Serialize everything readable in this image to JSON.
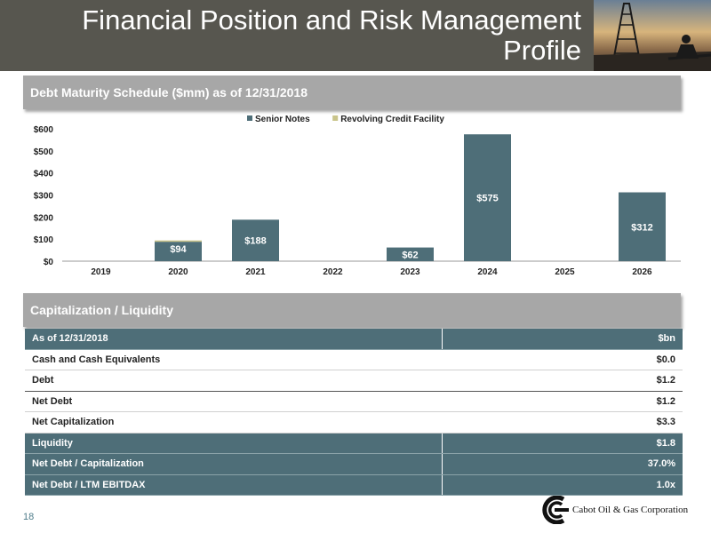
{
  "title": "Financial Position and Risk Management Profile",
  "title_line1": "Financial Position and Risk Management",
  "title_line2": "Profile",
  "debt_section": {
    "header": "Debt Maturity Schedule ($mm) as of 12/31/2018"
  },
  "chart_data": {
    "type": "bar",
    "stacked": true,
    "title": "Debt Maturity Schedule ($mm) as of 12/31/2018",
    "categories": [
      "2019",
      "2020",
      "2021",
      "2022",
      "2023",
      "2024",
      "2025",
      "2026"
    ],
    "series": [
      {
        "name": "Senior Notes",
        "color": "#4e6e78",
        "values": [
          0,
          88,
          188,
          0,
          62,
          575,
          0,
          312
        ]
      },
      {
        "name": "Revolving Credit Facility",
        "color": "#c9c48a",
        "values": [
          0,
          6,
          0,
          0,
          0,
          0,
          0,
          0
        ]
      }
    ],
    "data_labels": [
      "",
      "$94",
      "$188",
      "",
      "$62",
      "$575",
      "",
      "$312"
    ],
    "y_ticks": [
      "$0",
      "$100",
      "$200",
      "$300",
      "$400",
      "$500",
      "$600"
    ],
    "ylim": [
      0,
      600
    ],
    "legend_position": "top-center",
    "grid": false
  },
  "cap_section": {
    "header": "Capitalization / Liquidity",
    "header_row": {
      "label": "As of 12/31/2018",
      "unit": "$bn"
    },
    "rows": [
      {
        "label": "Cash and Cash Equivalents",
        "value": "$0.0"
      },
      {
        "label": "Debt",
        "value": "$1.2"
      },
      {
        "label": "Net Debt",
        "value": "$1.2"
      },
      {
        "label": "Net Capitalization",
        "value": "$3.3"
      },
      {
        "label": "Liquidity",
        "value": "$1.8"
      },
      {
        "label": "Net Debt / Capitalization",
        "value": "37.0%"
      },
      {
        "label": "Net Debt / LTM EBITDAX",
        "value": "1.0x"
      }
    ]
  },
  "footer": {
    "page_number": "18",
    "company": "Cabot Oil & Gas Corporation"
  },
  "colors": {
    "title_bar": "#57564f",
    "teal": "#4e6e78",
    "section_gray": "#a7a7a7",
    "revolver": "#c9c48a"
  }
}
